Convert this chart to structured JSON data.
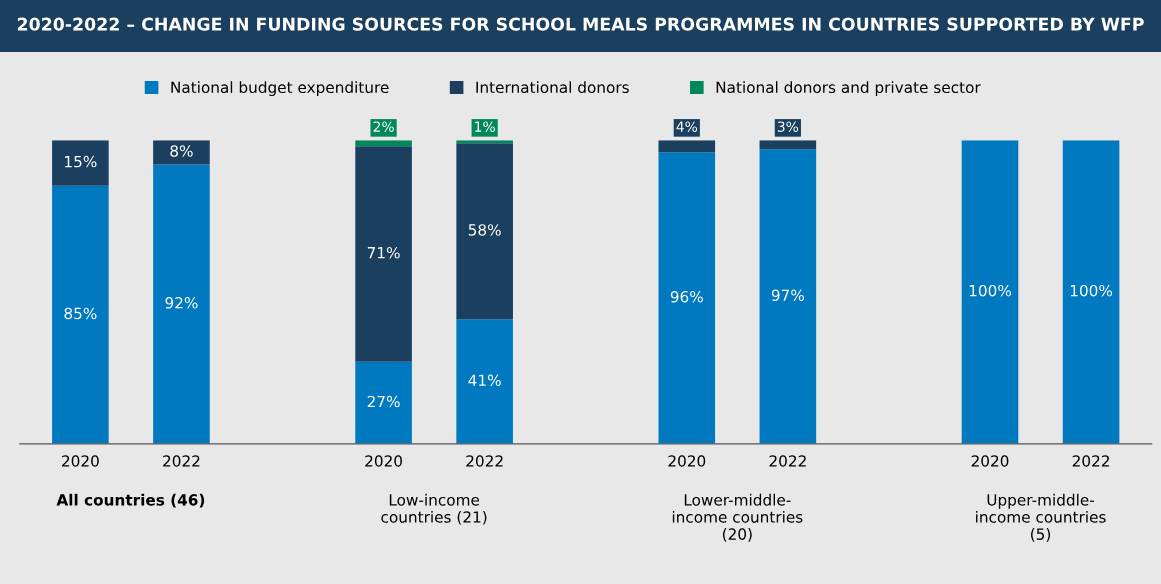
{
  "chart_data": {
    "type": "bar",
    "stacked": true,
    "title": "2020-2022 – CHANGE IN FUNDING SOURCES FOR SCHOOL MEALS PROGRAMMES IN COUNTRIES SUPPORTED BY WFP",
    "categories": [
      "2020",
      "2022",
      null,
      "2020",
      "2022",
      null,
      "2020",
      "2022",
      null,
      "2020",
      "2022"
    ],
    "series": [
      {
        "name": "National budget expenditure",
        "color": "#0079c1",
        "values": [
          85,
          92,
          null,
          27,
          41,
          null,
          96,
          97,
          null,
          100,
          100
        ],
        "value_labels": [
          "85%",
          "92%",
          null,
          "27%",
          "41%",
          null,
          "96%",
          "97%",
          null,
          "100%",
          "100%"
        ]
      },
      {
        "name": "International donors",
        "color": "#1b3f5e",
        "values": [
          15,
          8,
          null,
          71,
          58,
          null,
          4,
          3,
          null,
          null,
          null
        ],
        "value_labels": [
          "15%",
          "8%",
          null,
          "71%",
          "58%",
          null,
          "4%",
          "3%",
          null,
          null,
          null
        ]
      },
      {
        "name": "National donors and private sector",
        "color": "#00875a",
        "values": [
          null,
          null,
          null,
          2,
          1,
          null,
          null,
          null,
          null,
          null,
          null
        ],
        "value_labels": [
          null,
          null,
          null,
          "2%",
          "1%",
          null,
          null,
          null,
          null,
          null,
          null
        ]
      }
    ],
    "tick_labels": "x",
    "legend": "top",
    "grid": false,
    "annotations": [
      "All countries (46)",
      "Low-income\ncountries (21)",
      "Lower-middle-\nincome countries\n(20)",
      "Upper-middle-\nincome countries\n(5)"
    ]
  }
}
